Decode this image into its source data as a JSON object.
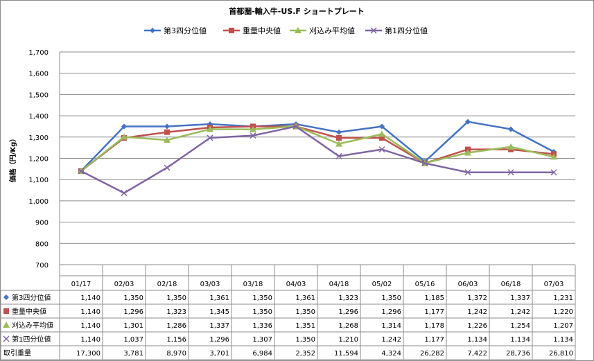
{
  "chart_data": {
    "type": "line",
    "title": "首都圏-輸入牛-US.F ショートプレート",
    "ylabel": "価格（円/Kg）",
    "ylim": [
      700,
      1700
    ],
    "yticks": [
      "700",
      "800",
      "900",
      "1,000",
      "1,100",
      "1,200",
      "1,300",
      "1,400",
      "1,500",
      "1,600",
      "1,700"
    ],
    "categories": [
      "01/17",
      "02/03",
      "02/18",
      "03/03",
      "03/18",
      "04/03",
      "04/18",
      "05/02",
      "05/16",
      "06/03",
      "06/18",
      "07/03"
    ],
    "legend_position": "top",
    "grid": true,
    "series": [
      {
        "name": "第3四分位値",
        "color": "#4472c4",
        "marker": "diamond",
        "values": [
          1140,
          1350,
          1350,
          1361,
          1350,
          1361,
          1323,
          1350,
          1185,
          1372,
          1337,
          1231
        ],
        "labels": [
          "1,140",
          "1,350",
          "1,350",
          "1,361",
          "1,350",
          "1,361",
          "1,323",
          "1,350",
          "1,185",
          "1,372",
          "1,337",
          "1,231"
        ]
      },
      {
        "name": "重量中央値",
        "color": "#c0504d",
        "marker": "square",
        "values": [
          1140,
          1296,
          1323,
          1345,
          1350,
          1350,
          1296,
          1296,
          1177,
          1242,
          1242,
          1220
        ],
        "labels": [
          "1,140",
          "1,296",
          "1,323",
          "1,345",
          "1,350",
          "1,350",
          "1,296",
          "1,296",
          "1,177",
          "1,242",
          "1,242",
          "1,220"
        ]
      },
      {
        "name": "刈込み平均値",
        "color": "#9bbb59",
        "marker": "triangle",
        "values": [
          1140,
          1301,
          1286,
          1337,
          1336,
          1351,
          1268,
          1314,
          1178,
          1226,
          1254,
          1207
        ],
        "labels": [
          "1,140",
          "1,301",
          "1,286",
          "1,337",
          "1,336",
          "1,351",
          "1,268",
          "1,314",
          "1,178",
          "1,226",
          "1,254",
          "1,207"
        ]
      },
      {
        "name": "第1四分位値",
        "color": "#8064a2",
        "marker": "x",
        "values": [
          1140,
          1037,
          1156,
          1296,
          1307,
          1350,
          1210,
          1242,
          1177,
          1134,
          1134,
          1134
        ],
        "labels": [
          "1,140",
          "1,037",
          "1,156",
          "1,296",
          "1,307",
          "1,350",
          "1,210",
          "1,242",
          "1,177",
          "1,134",
          "1,134",
          "1,134"
        ]
      }
    ],
    "table_extra_row": {
      "name": "取引重量",
      "labels": [
        "17,300",
        "3,781",
        "8,970",
        "3,701",
        "6,984",
        "2,352",
        "11,594",
        "4,324",
        "26,282",
        "7,422",
        "28,736",
        "26,810"
      ]
    }
  }
}
